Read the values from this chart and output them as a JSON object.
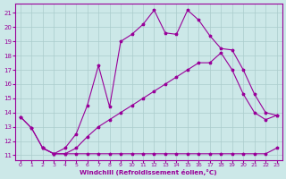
{
  "xlabel": "Windchill (Refroidissement éolien,°C)",
  "bg_color": "#cce8e8",
  "line_color": "#990099",
  "grid_color": "#aacccc",
  "xlim": [
    -0.5,
    23.5
  ],
  "ylim": [
    10.65,
    21.65
  ],
  "xticks": [
    0,
    1,
    2,
    3,
    4,
    5,
    6,
    7,
    8,
    9,
    10,
    11,
    12,
    13,
    14,
    15,
    16,
    17,
    18,
    19,
    20,
    21,
    22,
    23
  ],
  "yticks": [
    11,
    12,
    13,
    14,
    15,
    16,
    17,
    18,
    19,
    20,
    21
  ],
  "line_flat_x": [
    0,
    1,
    2,
    3,
    4,
    5,
    6,
    7,
    8,
    9,
    10,
    11,
    12,
    13,
    14,
    15,
    16,
    17,
    18,
    19,
    20,
    21,
    22,
    23
  ],
  "line_flat_y": [
    13.7,
    12.9,
    11.5,
    11.1,
    11.1,
    11.1,
    11.1,
    11.1,
    11.1,
    11.1,
    11.1,
    11.1,
    11.1,
    11.1,
    11.1,
    11.1,
    11.1,
    11.1,
    11.1,
    11.1,
    11.1,
    11.1,
    11.1,
    11.5
  ],
  "line_mid_x": [
    2,
    3,
    4,
    5,
    6,
    7,
    8,
    9,
    10,
    11,
    12,
    13,
    14,
    15,
    16,
    17,
    18,
    19,
    20,
    21,
    22,
    23
  ],
  "line_mid_y": [
    11.5,
    11.1,
    11.1,
    11.5,
    12.3,
    13.0,
    13.5,
    14.0,
    14.5,
    15.0,
    15.5,
    16.0,
    16.5,
    17.0,
    17.5,
    17.5,
    18.2,
    17.0,
    15.3,
    14.0,
    13.5,
    13.8
  ],
  "line_top_x": [
    0,
    1,
    2,
    3,
    4,
    5,
    6,
    7,
    8,
    9,
    10,
    11,
    12,
    13,
    14,
    15,
    16,
    17,
    18,
    19,
    20,
    21,
    22,
    23
  ],
  "line_top_y": [
    13.7,
    12.9,
    11.5,
    11.1,
    11.5,
    12.5,
    14.5,
    17.3,
    14.4,
    19.0,
    19.5,
    20.2,
    21.2,
    19.6,
    19.5,
    21.2,
    20.5,
    19.4,
    18.5,
    18.4,
    17.0,
    15.3,
    14.0,
    13.8
  ]
}
